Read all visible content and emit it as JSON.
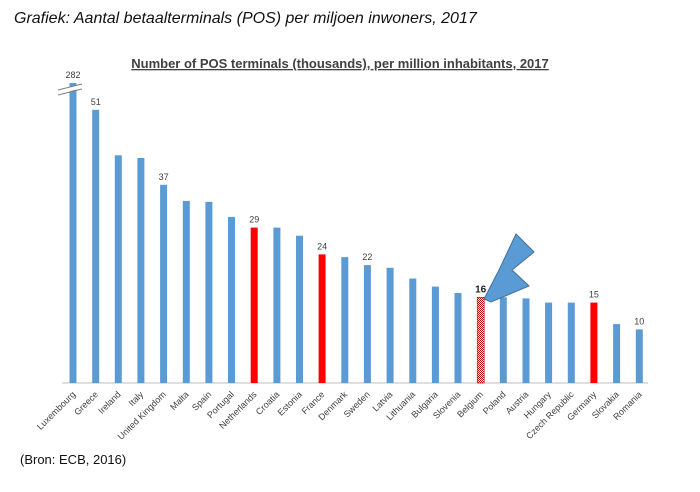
{
  "heading": "Grafiek: Aantal betaalterminals (POS) per miljoen inwoners, 2017",
  "source": "(Bron: ECB, 2016)",
  "chart_data": {
    "type": "bar",
    "title": "Number of POS terminals (thousands), per million inhabitants, 2017",
    "xlabel": "",
    "ylabel": "",
    "ylim": [
      0,
      56
    ],
    "axis_break": true,
    "grid": false,
    "categories": [
      "Luxembourg",
      "Greece",
      "Ireland",
      "Italy",
      "United Kingdom",
      "Malta",
      "Spain",
      "Portugal",
      "Netherlands",
      "Croatia",
      "Estonia",
      "France",
      "Denmark",
      "Sweden",
      "Latvia",
      "Lithuania",
      "Bulgaria",
      "Slovenia",
      "Belgium",
      "Poland",
      "Austria",
      "Hungary",
      "Czech Republic",
      "Germany",
      "Slovakia",
      "Romania"
    ],
    "values": [
      282,
      51,
      42.5,
      42,
      37,
      34,
      33.8,
      31,
      29,
      29,
      27.5,
      24,
      23.5,
      22,
      21.5,
      19.5,
      18,
      16.8,
      16,
      16,
      15.8,
      15,
      15,
      15,
      11,
      10
    ],
    "data_labels": [
      "282",
      "51",
      "",
      "",
      "37",
      "",
      "",
      "",
      "29",
      "",
      "",
      "24",
      "",
      "22",
      "",
      "",
      "",
      "",
      "16",
      "",
      "",
      "",
      "",
      "15",
      "",
      "10"
    ],
    "highlight_colors": {
      "default": "#5b9bd5",
      "Netherlands": "#ff0000",
      "France": "#ff0000",
      "Germany": "#ff0000",
      "Belgium": "#c00000"
    },
    "annotations": [
      {
        "type": "arrow",
        "target": "Belgium",
        "color": "#5b9bd5"
      }
    ]
  }
}
